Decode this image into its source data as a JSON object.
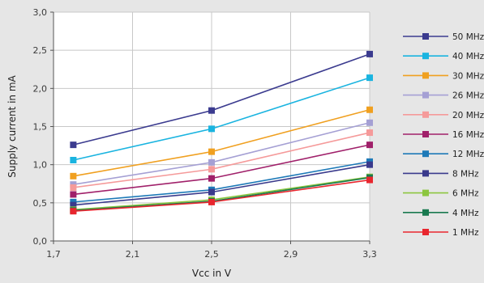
{
  "chart_data": {
    "type": "line",
    "xlabel": "Vcc in V",
    "ylabel": "Supply current in mA",
    "xlim": [
      1.7,
      3.3
    ],
    "ylim": [
      0.0,
      3.0
    ],
    "x_ticks": [
      "1,7",
      "2,1",
      "2,5",
      "2,9",
      "3,3"
    ],
    "y_ticks": [
      "0,0",
      "0,5",
      "1,0",
      "1,5",
      "2,0",
      "2,5",
      "3,0"
    ],
    "x_tick_values": [
      1.7,
      2.1,
      2.5,
      2.9,
      3.3
    ],
    "y_tick_values": [
      0,
      0.5,
      1.0,
      1.5,
      2.0,
      2.5,
      3.0
    ],
    "grid": true,
    "legend_position": "right",
    "x": [
      1.8,
      2.5,
      3.3
    ],
    "series": [
      {
        "name": "50 MHz",
        "color": "#3b3b8f",
        "values": [
          1.26,
          1.71,
          2.45
        ]
      },
      {
        "name": "40 MHz",
        "color": "#1ab4e0",
        "values": [
          1.06,
          1.47,
          2.14
        ]
      },
      {
        "name": "30 MHz",
        "color": "#f0a020",
        "values": [
          0.85,
          1.17,
          1.72
        ]
      },
      {
        "name": "26 MHz",
        "color": "#a5a0d4",
        "values": [
          0.74,
          1.03,
          1.55
        ]
      },
      {
        "name": "20 MHz",
        "color": "#f59a9a",
        "values": [
          0.7,
          0.94,
          1.42
        ]
      },
      {
        "name": "16 MHz",
        "color": "#a0206a",
        "values": [
          0.61,
          0.82,
          1.26
        ]
      },
      {
        "name": "12 MHz",
        "color": "#1e7ab8",
        "values": [
          0.51,
          0.67,
          1.04
        ]
      },
      {
        "name": "8 MHz",
        "color": "#3a3a8c",
        "values": [
          0.47,
          0.64,
          1.0
        ]
      },
      {
        "name": "6 MHz",
        "color": "#8cc63f",
        "values": [
          0.41,
          0.54,
          0.84
        ]
      },
      {
        "name": "4 MHz",
        "color": "#1a7a50",
        "values": [
          0.4,
          0.52,
          0.83
        ]
      },
      {
        "name": "1 MHz",
        "color": "#e8262e",
        "values": [
          0.39,
          0.51,
          0.8
        ]
      }
    ]
  }
}
